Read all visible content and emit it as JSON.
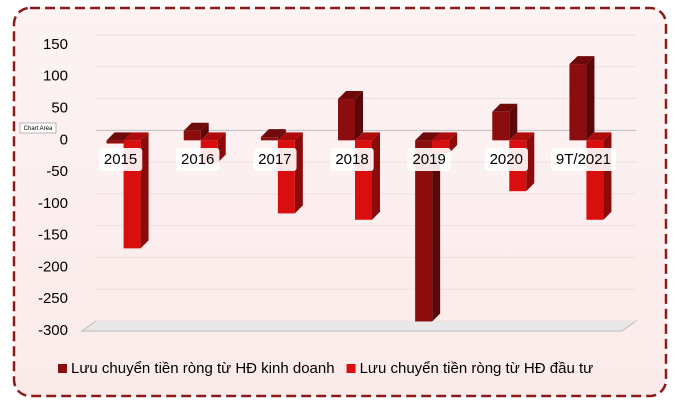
{
  "chart_data": {
    "type": "bar3d",
    "categories": [
      "2015",
      "2016",
      "2017",
      "2018",
      "2019",
      "2020",
      "9T/2021"
    ],
    "series": [
      {
        "name": "Lưu chuyển tiền ròng từ HĐ kinh doanh",
        "color": "#8b0d0d",
        "values": [
          -5,
          15,
          5,
          65,
          -285,
          45,
          120
        ]
      },
      {
        "name": "Lưu chuyển tiền ròng từ HĐ đầu tư",
        "color": "#d90f0f",
        "values": [
          -170,
          -35,
          -115,
          -125,
          -20,
          -80,
          -125
        ]
      }
    ],
    "ylim": [
      -300,
      150
    ],
    "yticks": [
      -300,
      -250,
      -200,
      -150,
      -100,
      -50,
      0,
      50,
      100,
      150
    ],
    "grid": true,
    "legend": "bottom",
    "tooltip": "Chart Area"
  }
}
